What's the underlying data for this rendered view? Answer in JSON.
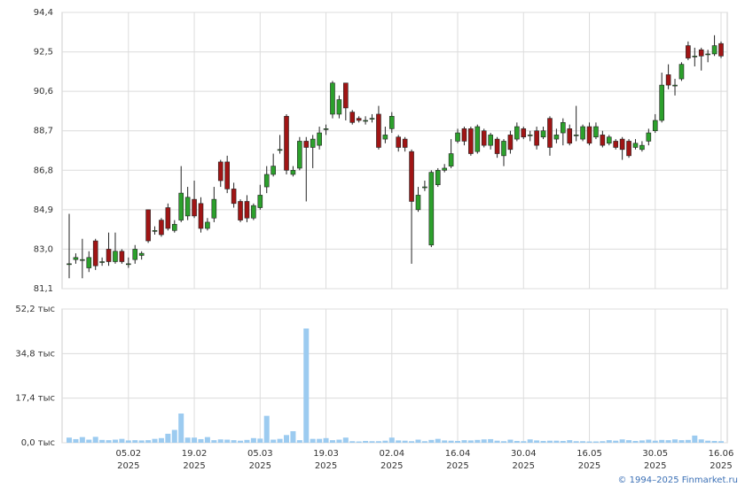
{
  "chart_data": {
    "type": "candlestick",
    "x": [
      "2025-01-23",
      "2025-01-24",
      "2025-01-27",
      "2025-01-28",
      "2025-01-29",
      "2025-01-30",
      "2025-01-31",
      "2025-02-03",
      "2025-02-04",
      "2025-02-05",
      "2025-02-06",
      "2025-02-07",
      "2025-02-10",
      "2025-02-11",
      "2025-02-12",
      "2025-02-13",
      "2025-02-14",
      "2025-02-17",
      "2025-02-18",
      "2025-02-19",
      "2025-02-20",
      "2025-02-21",
      "2025-02-24",
      "2025-02-25",
      "2025-02-26",
      "2025-02-27",
      "2025-02-28",
      "2025-03-03",
      "2025-03-04",
      "2025-03-05",
      "2025-03-06",
      "2025-03-07",
      "2025-03-10",
      "2025-03-11",
      "2025-03-12",
      "2025-03-13",
      "2025-03-14",
      "2025-03-17",
      "2025-03-18",
      "2025-03-19",
      "2025-03-20",
      "2025-03-21",
      "2025-03-24",
      "2025-03-25",
      "2025-03-26",
      "2025-03-27",
      "2025-03-28",
      "2025-03-31",
      "2025-04-01",
      "2025-04-02",
      "2025-04-03",
      "2025-04-04",
      "2025-04-07",
      "2025-04-08",
      "2025-04-09",
      "2025-04-10",
      "2025-04-11",
      "2025-04-14",
      "2025-04-15",
      "2025-04-16",
      "2025-04-17",
      "2025-04-18",
      "2025-04-21",
      "2025-04-22",
      "2025-04-23",
      "2025-04-24",
      "2025-04-25",
      "2025-04-28",
      "2025-04-29",
      "2025-04-30",
      "2025-05-02",
      "2025-05-05",
      "2025-05-06",
      "2025-05-07",
      "2025-05-08",
      "2025-05-12",
      "2025-05-13",
      "2025-05-14",
      "2025-05-15",
      "2025-05-16",
      "2025-05-19",
      "2025-05-20",
      "2025-05-21",
      "2025-05-22",
      "2025-05-23",
      "2025-05-26",
      "2025-05-27",
      "2025-05-28",
      "2025-05-29",
      "2025-05-30",
      "2025-06-02",
      "2025-06-03",
      "2025-06-04",
      "2025-06-05",
      "2025-06-06",
      "2025-06-09",
      "2025-06-10",
      "2025-06-11",
      "2025-06-13",
      "2025-06-16"
    ],
    "open": [
      82.3,
      82.5,
      82.5,
      82.1,
      83.4,
      82.4,
      83.0,
      82.4,
      82.9,
      82.3,
      82.5,
      82.7,
      84.9,
      83.9,
      84.4,
      85.0,
      83.9,
      84.4,
      84.6,
      85.4,
      85.2,
      84.0,
      84.5,
      87.2,
      87.2,
      85.9,
      85.3,
      85.3,
      84.5,
      85.0,
      86.0,
      86.6,
      87.8,
      89.4,
      86.6,
      86.9,
      88.2,
      87.9,
      88.0,
      88.8,
      89.5,
      89.5,
      91.0,
      89.6,
      89.3,
      89.2,
      89.3,
      89.5,
      88.3,
      88.8,
      88.4,
      88.3,
      87.7,
      84.9,
      86.0,
      83.2,
      86.1,
      86.8,
      87.0,
      88.2,
      88.8,
      88.8,
      87.7,
      88.7,
      88.0,
      88.3,
      87.5,
      88.5,
      88.3,
      88.8,
      88.5,
      88.7,
      88.4,
      89.3,
      88.3,
      88.6,
      88.8,
      88.5,
      88.3,
      88.9,
      88.4,
      88.5,
      88.1,
      88.2,
      88.3,
      88.2,
      87.9,
      87.8,
      88.2,
      88.7,
      89.2,
      91.4,
      90.9,
      91.2,
      92.8,
      92.3,
      92.6,
      92.4,
      92.4,
      92.9
    ],
    "high": [
      84.7,
      82.8,
      83.5,
      82.9,
      83.5,
      82.6,
      83.8,
      83.8,
      83.0,
      82.6,
      83.2,
      82.9,
      84.9,
      84.1,
      84.5,
      85.2,
      84.4,
      87.0,
      86.0,
      86.3,
      85.5,
      84.5,
      86.0,
      87.3,
      87.5,
      86.2,
      85.4,
      85.6,
      85.2,
      86.1,
      87.0,
      87.6,
      88.5,
      89.5,
      87.0,
      88.4,
      88.4,
      88.5,
      88.9,
      89.0,
      91.1,
      90.4,
      91.0,
      89.7,
      89.4,
      89.4,
      89.5,
      89.9,
      88.9,
      89.6,
      88.5,
      88.4,
      87.8,
      86.0,
      86.3,
      86.8,
      86.9,
      87.1,
      88.3,
      88.8,
      88.9,
      88.9,
      89.0,
      88.8,
      88.6,
      88.4,
      88.3,
      88.7,
      89.1,
      88.9,
      88.7,
      88.9,
      88.9,
      89.4,
      88.8,
      89.3,
      89.0,
      89.9,
      89.0,
      89.1,
      89.1,
      88.7,
      88.5,
      88.3,
      88.4,
      88.3,
      88.3,
      88.2,
      88.8,
      89.5,
      91.5,
      91.9,
      91.2,
      92.0,
      93.0,
      92.7,
      92.7,
      92.6,
      93.3,
      93.0
    ],
    "low": [
      81.6,
      82.3,
      81.6,
      81.9,
      82.0,
      82.2,
      82.2,
      82.3,
      82.3,
      82.1,
      82.3,
      82.5,
      83.3,
      83.7,
      83.6,
      83.9,
      83.8,
      84.3,
      84.4,
      84.5,
      83.8,
      83.9,
      84.3,
      86.0,
      85.7,
      85.0,
      84.3,
      84.3,
      84.4,
      84.9,
      85.7,
      86.5,
      87.6,
      86.6,
      86.5,
      86.8,
      85.3,
      86.9,
      87.8,
      88.5,
      89.3,
      89.3,
      89.2,
      89.0,
      89.1,
      89.0,
      89.1,
      87.8,
      88.1,
      88.6,
      87.7,
      87.7,
      82.3,
      84.8,
      85.8,
      83.1,
      86.0,
      86.7,
      86.9,
      88.1,
      88.0,
      87.5,
      87.6,
      87.9,
      87.8,
      87.4,
      87.0,
      87.6,
      88.2,
      88.3,
      88.2,
      87.8,
      88.3,
      87.5,
      88.1,
      88.0,
      88.0,
      88.2,
      88.2,
      88.0,
      88.3,
      87.9,
      88.0,
      87.8,
      87.3,
      87.4,
      87.8,
      87.7,
      88.0,
      88.6,
      89.1,
      90.7,
      90.4,
      91.1,
      92.1,
      91.8,
      91.6,
      92.0,
      92.3,
      92.2
    ],
    "close": [
      82.3,
      82.6,
      82.5,
      82.6,
      82.2,
      82.4,
      82.4,
      82.9,
      82.4,
      82.3,
      83.0,
      82.8,
      83.4,
      83.9,
      83.7,
      84.0,
      84.2,
      85.7,
      85.5,
      84.6,
      84.0,
      84.3,
      85.4,
      86.3,
      85.9,
      85.2,
      84.4,
      84.5,
      85.1,
      85.6,
      86.6,
      87.0,
      87.8,
      86.8,
      86.8,
      88.2,
      87.9,
      88.3,
      88.6,
      88.8,
      91.0,
      90.2,
      89.8,
      89.1,
      89.2,
      89.2,
      89.3,
      87.9,
      88.5,
      89.4,
      87.9,
      87.9,
      85.3,
      85.6,
      86.0,
      86.7,
      86.8,
      86.9,
      87.6,
      88.6,
      88.2,
      87.6,
      88.9,
      88.0,
      88.5,
      87.6,
      88.2,
      87.8,
      88.9,
      88.4,
      88.5,
      88.0,
      88.7,
      87.9,
      88.5,
      89.1,
      88.1,
      88.5,
      88.9,
      88.1,
      88.9,
      88.0,
      88.4,
      87.9,
      87.8,
      87.5,
      88.1,
      88.0,
      88.6,
      89.2,
      90.9,
      90.9,
      90.9,
      91.9,
      92.2,
      92.3,
      92.3,
      92.4,
      92.8,
      92.3
    ],
    "volume": [
      2.0,
      1.4,
      2.2,
      1.2,
      2.3,
      1.1,
      1.0,
      1.2,
      1.5,
      0.9,
      1.0,
      0.9,
      1.0,
      1.5,
      1.8,
      3.5,
      5.0,
      11.4,
      2.0,
      2.0,
      1.4,
      2.2,
      1.0,
      1.3,
      1.2,
      1.0,
      0.8,
      1.1,
      1.8,
      1.6,
      10.5,
      1.2,
      1.5,
      3.0,
      4.5,
      1.0,
      44.6,
      1.5,
      1.5,
      1.8,
      1.0,
      1.2,
      2.0,
      0.6,
      0.5,
      0.7,
      0.6,
      0.6,
      0.8,
      2.0,
      0.9,
      0.8,
      0.6,
      1.2,
      0.6,
      1.1,
      1.5,
      0.9,
      0.8,
      0.7,
      1.0,
      0.9,
      1.1,
      1.3,
      1.4,
      0.8,
      0.6,
      1.2,
      0.7,
      0.6,
      1.3,
      0.9,
      0.7,
      0.8,
      0.8,
      0.7,
      1.0,
      0.6,
      0.6,
      0.5,
      0.5,
      0.6,
      1.0,
      0.8,
      1.3,
      1.0,
      0.7,
      0.9,
      1.2,
      0.8,
      1.1,
      1.0,
      1.3,
      1.0,
      1.1,
      2.8,
      1.3,
      0.8,
      0.7,
      0.6
    ],
    "ylim": [
      81.1,
      94.4
    ],
    "yticks": [
      {
        "value": 81.1,
        "label": "81,1"
      },
      {
        "value": 83.0,
        "label": "83,0"
      },
      {
        "value": 84.9,
        "label": "84,9"
      },
      {
        "value": 86.8,
        "label": "86,8"
      },
      {
        "value": 88.7,
        "label": "88,7"
      },
      {
        "value": 90.6,
        "label": "90,6"
      },
      {
        "value": 92.5,
        "label": "92,5"
      },
      {
        "value": 94.4,
        "label": "94,4"
      }
    ],
    "volume_ylim": [
      0,
      52.2
    ],
    "volume_yticks": [
      {
        "value": 0,
        "label": "0,0 тыс"
      },
      {
        "value": 17.4,
        "label": "17,4 тыс"
      },
      {
        "value": 34.8,
        "label": "34,8 тыс"
      },
      {
        "value": 52.2,
        "label": "52,2 тыс"
      }
    ],
    "xticks": [
      {
        "value": "2025-02-05",
        "label": "05.02",
        "sublabel": "2025"
      },
      {
        "value": "2025-02-19",
        "label": "19.02",
        "sublabel": "2025"
      },
      {
        "value": "2025-03-05",
        "label": "05.03",
        "sublabel": "2025"
      },
      {
        "value": "2025-03-19",
        "label": "19.03",
        "sublabel": "2025"
      },
      {
        "value": "2025-04-02",
        "label": "02.04",
        "sublabel": "2025"
      },
      {
        "value": "2025-04-16",
        "label": "16.04",
        "sublabel": "2025"
      },
      {
        "value": "2025-04-30",
        "label": "30.04",
        "sublabel": "2025"
      },
      {
        "value": "2025-05-16",
        "label": "16.05",
        "sublabel": "2025"
      },
      {
        "value": "2025-05-30",
        "label": "30.05",
        "sublabel": "2025"
      },
      {
        "value": "2025-06-16",
        "label": "16.06",
        "sublabel": "2025"
      }
    ],
    "up_color": "#2ca02c",
    "down_color": "#a01515",
    "volume_color": "#9ccbf0",
    "grid": true
  },
  "footer": "© 1994–2025 Finmarket.ru"
}
